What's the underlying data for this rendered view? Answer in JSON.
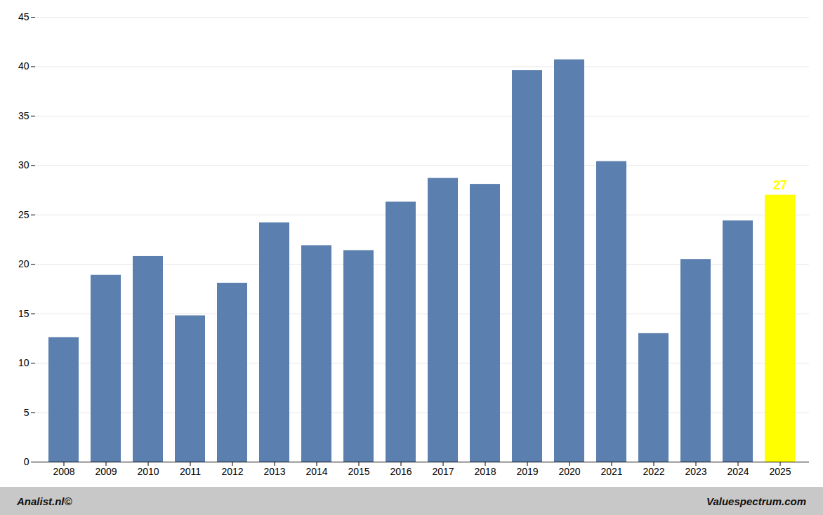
{
  "chart_data": {
    "type": "bar",
    "categories": [
      "2008",
      "2009",
      "2010",
      "2011",
      "2012",
      "2013",
      "2014",
      "2015",
      "2016",
      "2017",
      "2018",
      "2019",
      "2020",
      "2021",
      "2022",
      "2023",
      "2024",
      "2025"
    ],
    "values": [
      12.6,
      18.9,
      20.8,
      14.8,
      18.1,
      24.2,
      21.9,
      21.4,
      26.3,
      28.7,
      28.1,
      39.6,
      40.7,
      30.4,
      13.0,
      20.5,
      24.4,
      27.0
    ],
    "colors": [
      "#5b7faf",
      "#5b7faf",
      "#5b7faf",
      "#5b7faf",
      "#5b7faf",
      "#5b7faf",
      "#5b7faf",
      "#5b7faf",
      "#5b7faf",
      "#5b7faf",
      "#5b7faf",
      "#5b7faf",
      "#5b7faf",
      "#5b7faf",
      "#5b7faf",
      "#5b7faf",
      "#5b7faf",
      "#ffff00"
    ],
    "ylim": [
      0,
      45
    ],
    "yticks": [
      0,
      5,
      10,
      15,
      20,
      25,
      30,
      35,
      40,
      45
    ],
    "grid": true,
    "annotations": [
      {
        "text": "27",
        "x": "2025",
        "y": 27.0,
        "color": "#ffff00",
        "background": "#1e3a6e"
      }
    ],
    "footer_left": "Analist.nl©",
    "footer_right": "Valuespectrum.com"
  }
}
